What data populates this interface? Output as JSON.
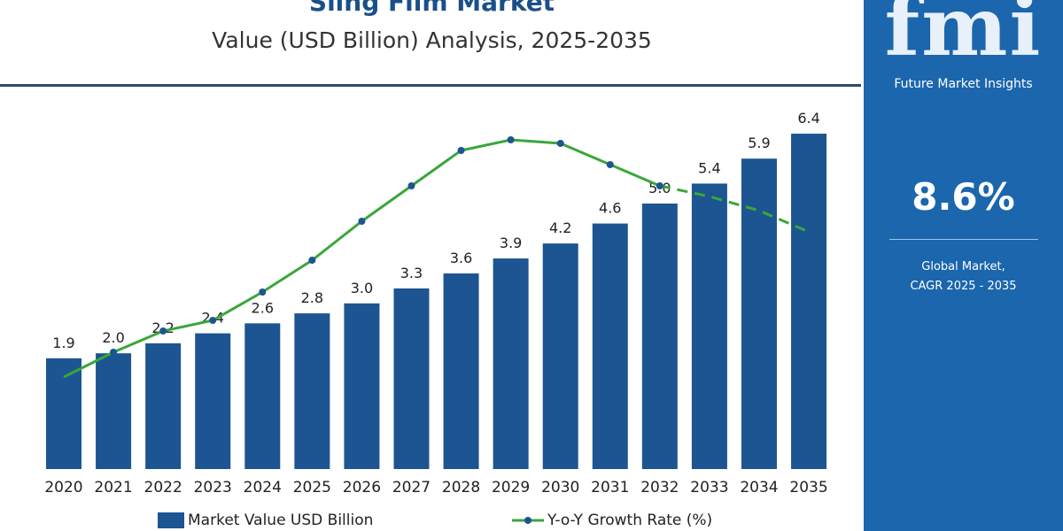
{
  "header": {
    "title": "Sling Film Market",
    "subtitle": "Value (USD Billion) Analysis, 2025-2035"
  },
  "panel": {
    "logo": "fmi",
    "logo_sub": "Future Market Insights",
    "cagr": "8.6%",
    "cagr_label_1": "Global Market,",
    "cagr_label_2": "CAGR 2025 - 2035"
  },
  "colors": {
    "bar": "#1c5591",
    "line": "#3aa63a",
    "panel": "#1b66ac"
  },
  "chart_data": {
    "type": "bar",
    "title": "Value (USD Billion) Analysis, 2025-2035",
    "categories": [
      "2020",
      "2021",
      "2022",
      "2023",
      "2024",
      "2025",
      "2026",
      "2027",
      "2028",
      "2029",
      "2030",
      "2031",
      "2032",
      "2033",
      "2034",
      "2035"
    ],
    "series": [
      {
        "name": "Market Value USD Billion",
        "type": "bar",
        "values": [
          1.9,
          2.0,
          2.2,
          2.4,
          2.6,
          2.8,
          3.0,
          3.3,
          3.6,
          3.9,
          4.2,
          4.6,
          5.0,
          5.4,
          5.9,
          6.4
        ],
        "labels": [
          "1.9",
          "2.0",
          "2.2",
          "2.4",
          "2.6",
          "2.8",
          "3.0",
          "3.3",
          "3.6",
          "3.9",
          "4.2",
          "4.6",
          "5.0",
          "5.4",
          "5.9",
          "6.4"
        ]
      },
      {
        "name": "Y-o-Y Growth Rate (%)",
        "type": "line",
        "values": [
          2.6,
          3.3,
          3.9,
          4.2,
          5.0,
          5.9,
          7.0,
          8.0,
          9.0,
          9.3,
          9.2,
          8.6,
          8.0,
          7.7,
          7.3,
          6.7
        ],
        "dashed_from": "2032"
      }
    ],
    "legend": "bottom",
    "grid": false
  }
}
